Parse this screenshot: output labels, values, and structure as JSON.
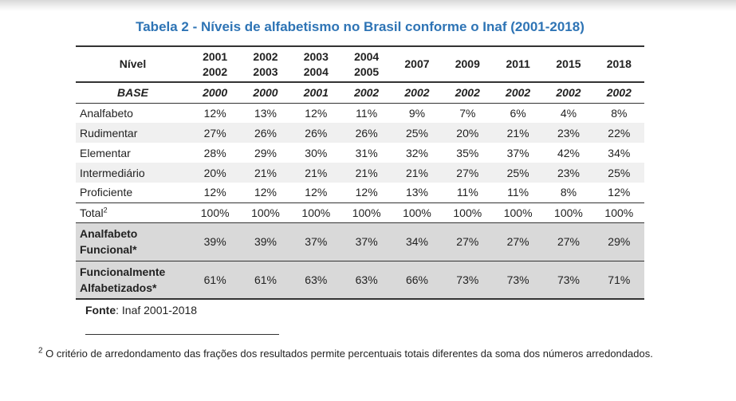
{
  "title": "Tabela 2 - Níveis de alfabetismo no Brasil conforme o Inaf (2001-2018)",
  "table": {
    "header": {
      "nivel": "Nível",
      "years": [
        [
          "2001",
          "2002"
        ],
        [
          "2002",
          "2003"
        ],
        [
          "2003",
          "2004"
        ],
        [
          "2004",
          "2005"
        ],
        [
          "2007"
        ],
        [
          "2009"
        ],
        [
          "2011"
        ],
        [
          "2015"
        ],
        [
          "2018"
        ]
      ]
    },
    "base": {
      "label": "BASE",
      "values": [
        "2000",
        "2000",
        "2001",
        "2002",
        "2002",
        "2002",
        "2002",
        "2002",
        "2002"
      ]
    },
    "rows": [
      {
        "label": "Analfabeto",
        "values": [
          "12%",
          "13%",
          "12%",
          "11%",
          "9%",
          "7%",
          "6%",
          "4%",
          "8%"
        ]
      },
      {
        "label": "Rudimentar",
        "values": [
          "27%",
          "26%",
          "26%",
          "26%",
          "25%",
          "20%",
          "21%",
          "23%",
          "22%"
        ]
      },
      {
        "label": "Elementar",
        "values": [
          "28%",
          "29%",
          "30%",
          "31%",
          "32%",
          "35%",
          "37%",
          "42%",
          "34%"
        ]
      },
      {
        "label": "Intermediário",
        "values": [
          "20%",
          "21%",
          "21%",
          "21%",
          "21%",
          "27%",
          "25%",
          "23%",
          "25%"
        ]
      },
      {
        "label": "Proficiente",
        "values": [
          "12%",
          "12%",
          "12%",
          "12%",
          "13%",
          "11%",
          "11%",
          "8%",
          "12%"
        ]
      }
    ],
    "total": {
      "label": "Total",
      "sup": "2",
      "values": [
        "100%",
        "100%",
        "100%",
        "100%",
        "100%",
        "100%",
        "100%",
        "100%",
        "100%"
      ]
    },
    "analfabeto_funcional": {
      "label": [
        "Analfabeto",
        "Funcional*"
      ],
      "values": [
        "39%",
        "39%",
        "37%",
        "37%",
        "34%",
        "27%",
        "27%",
        "27%",
        "29%"
      ]
    },
    "funcionalmente_alfabetizados": {
      "label": [
        "Funcionalmente",
        "Alfabetizados*"
      ],
      "values": [
        "61%",
        "61%",
        "63%",
        "63%",
        "66%",
        "73%",
        "73%",
        "73%",
        "71%"
      ]
    }
  },
  "source": {
    "label": "Fonte",
    "text": ": Inaf 2001-2018"
  },
  "footnote": {
    "mark": "2",
    "text": " O critério de arredondamento das frações dos resultados permite percentuais totais diferentes da soma dos números arredondados."
  },
  "colors": {
    "title": "#2e74b5",
    "shaded_row": "#d9d9d9",
    "alt_row": "#f0f0f0"
  }
}
